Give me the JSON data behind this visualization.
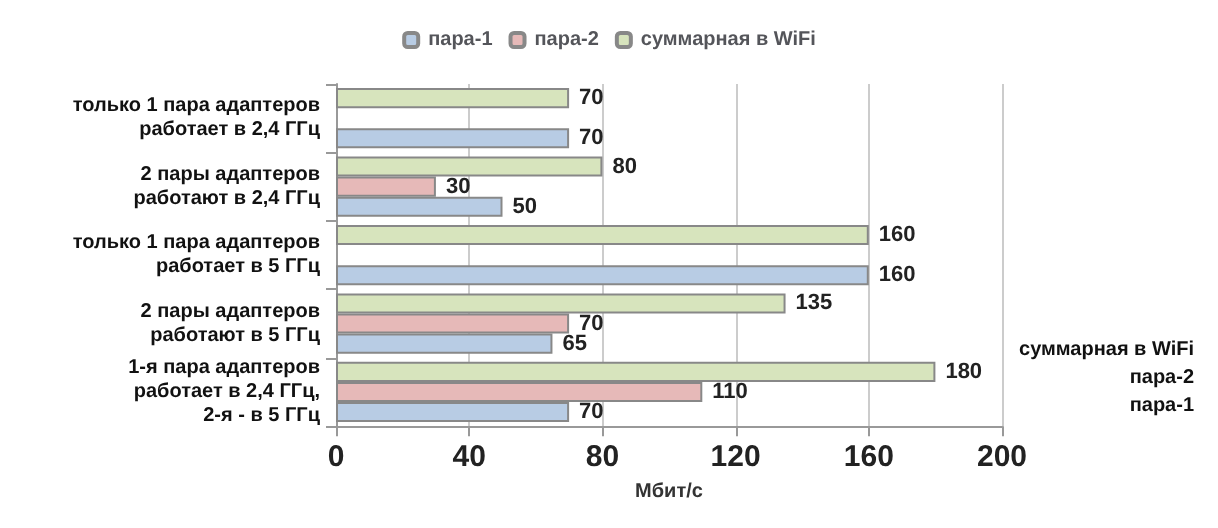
{
  "chart_data": {
    "type": "bar",
    "orientation": "horizontal",
    "xlabel": "Мбит/с",
    "categories": [
      "только 1 пара адаптеров\nработает в 2,4 ГГц",
      "2 пары адаптеров\nработают в 2,4 ГГц",
      "только 1 пара адаптеров\nработает в 5 ГГц",
      "2 пары адаптеров\nработают в 5 ГГц",
      "1-я пара адаптеров\nработает в 2,4 ГГц,\n2-я - в 5 ГГц"
    ],
    "series": [
      {
        "name": "пара-1",
        "color": "#b8cce4",
        "values": [
          70,
          50,
          160,
          65,
          70
        ]
      },
      {
        "name": "пара-2",
        "color": "#e6b9b8",
        "values": [
          null,
          30,
          null,
          70,
          110
        ]
      },
      {
        "name": "суммарная в WiFi",
        "color": "#d7e4bd",
        "values": [
          70,
          80,
          160,
          135,
          180
        ]
      }
    ],
    "xlim": [
      0,
      200
    ],
    "xticks": [
      0,
      40,
      80,
      120,
      160,
      200
    ],
    "grid": "x",
    "legend": "top",
    "data_labels": true
  }
}
